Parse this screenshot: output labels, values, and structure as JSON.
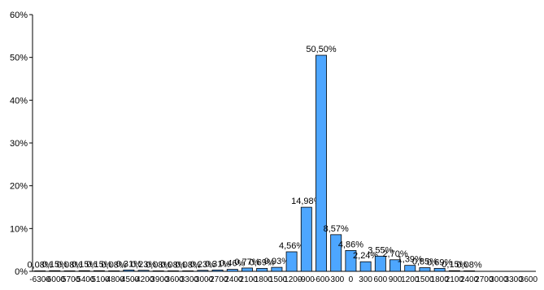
{
  "chart_data": {
    "type": "bar",
    "categories": [
      "-6300",
      "-6000",
      "-5700",
      "-5400",
      "-5100",
      "-4800",
      "-4500",
      "-4200",
      "-3900",
      "-3600",
      "-3300",
      "-3000",
      "-2700",
      "-2400",
      "-2100",
      "-1800",
      "-1500",
      "-1200",
      "-900",
      "-600",
      "-300",
      "0",
      "300",
      "600",
      "900",
      "1200",
      "1500",
      "1800",
      "2100",
      "2400",
      "2700",
      "3000",
      "3300",
      "3600"
    ],
    "values": [
      0.08,
      0.15,
      0.08,
      0.15,
      0.15,
      0.08,
      0.31,
      0.23,
      0.08,
      0.08,
      0.08,
      0.23,
      0.31,
      0.46,
      0.77,
      0.69,
      0.93,
      4.56,
      14.98,
      50.5,
      8.57,
      4.86,
      2.24,
      3.55,
      2.7,
      1.39,
      0.85,
      0.69,
      0.15,
      0.08,
      null,
      null,
      null,
      null
    ],
    "data_labels": [
      "0,08%",
      "0,15%",
      "0,08%",
      "0,15%",
      "0,15%",
      "0,08%",
      "0,31%",
      "0,23%",
      "0,08%",
      "0,08%",
      "0,08%",
      "0,23%",
      "0,31%",
      "0,46%",
      "0,77%",
      "0,69%",
      "0,93%",
      "4,56%",
      "14,98%",
      "50,50%",
      "8,57%",
      "4,86%",
      "2,24%",
      "3,55%",
      "2,70%",
      "1,39%",
      "0,85%",
      "0,69%",
      "0,15%",
      "0,08%",
      "",
      "",
      "",
      ""
    ],
    "y_ticks": [
      "0%",
      "10%",
      "20%",
      "30%",
      "40%",
      "50%",
      "60%"
    ],
    "ylim": [
      0,
      60
    ],
    "bar_color": "#4da6ff",
    "bar_stroke": "#000000",
    "grid": false,
    "legend": "none",
    "title": "",
    "xlabel": "",
    "ylabel": ""
  }
}
